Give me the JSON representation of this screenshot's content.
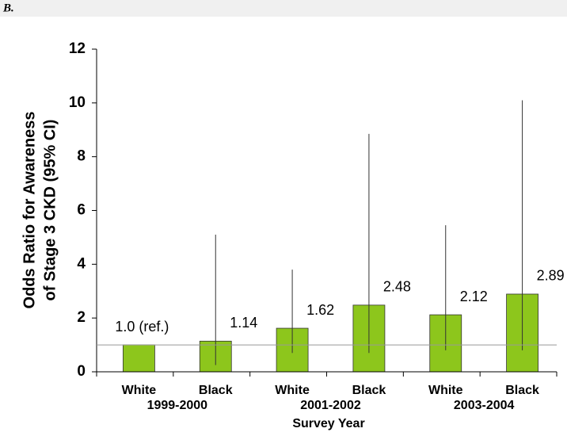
{
  "panel_label": "B.",
  "chart_data": {
    "type": "bar",
    "y_label": [
      "Odds Ratio for Awareness",
      "of Stage 3 CKD (95% CI)"
    ],
    "x_label": "Survey Year",
    "categories": [
      "White",
      "Black",
      "White",
      "Black",
      "White",
      "Black"
    ],
    "groups": [
      "1999-2000",
      "2001-2002",
      "2003-2004"
    ],
    "values": [
      1.0,
      1.14,
      1.62,
      2.48,
      2.12,
      2.89
    ],
    "value_labels": [
      "1.0 (ref.)",
      "1.14",
      "1.62",
      "2.48",
      "2.12",
      "2.89"
    ],
    "ci_low": [
      null,
      0.25,
      0.7,
      0.7,
      0.8,
      0.8
    ],
    "ci_high": [
      null,
      5.1,
      3.8,
      8.85,
      5.45,
      10.1
    ],
    "reference_line": 1,
    "color": "#8dc61c",
    "ylim": [
      0,
      12
    ],
    "yticks": [
      0,
      2,
      4,
      6,
      8,
      10,
      12
    ]
  }
}
